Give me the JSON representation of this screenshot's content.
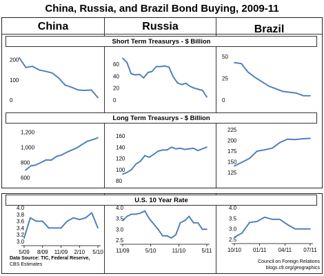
{
  "title": "China, Russia, and Brazil Bond Buying, 2009-11",
  "columns": [
    "China",
    "Russia",
    "Brazil"
  ],
  "sections": [
    "Short Term Treasurys - $ Billion",
    "Long Term Treasurys - $ Billion",
    "U.S. 10 Year Rate"
  ],
  "footer": {
    "source_line1": "Data Source: TIC, Federal Reserve,",
    "source_line2": "CBS Estimates",
    "org_line1": "Council on Foreign Relations",
    "org_line2": "blogs.cfr.org/geographics"
  },
  "colors": {
    "line": "#4f81bd",
    "border": "#222222"
  },
  "chart_data": [
    {
      "type": "line",
      "section": "Short Term Treasurys - $ Billion",
      "country": "China",
      "ylim": [
        0,
        230
      ],
      "yticks": [
        0,
        100,
        200
      ],
      "ytick_labels": [
        "0",
        "100",
        "200"
      ],
      "x": [
        0,
        1,
        2,
        3,
        4,
        5,
        6,
        7,
        8,
        9,
        10,
        11,
        12
      ],
      "values": [
        210,
        162,
        168,
        150,
        143,
        135,
        110,
        75,
        63,
        50,
        48,
        50,
        12
      ]
    },
    {
      "type": "line",
      "section": "Short Term Treasurys - $ Billion",
      "country": "Russia",
      "ylim": [
        0,
        75
      ],
      "yticks": [
        0,
        20,
        40,
        60
      ],
      "ytick_labels": [
        "0",
        "20",
        "40",
        "60"
      ],
      "x": [
        0,
        1,
        2,
        3,
        4,
        5,
        6,
        7,
        8,
        9,
        10,
        11,
        12,
        13,
        14,
        15,
        16,
        17,
        18,
        19,
        20
      ],
      "values": [
        70,
        63,
        44,
        42,
        43,
        37,
        46,
        48,
        56,
        56,
        57,
        55,
        39,
        29,
        26,
        28,
        23,
        20,
        18,
        16,
        5
      ]
    },
    {
      "type": "line",
      "section": "Short Term Treasurys - $ Billion",
      "country": "Brazil",
      "ylim": [
        0,
        50
      ],
      "yticks": [
        0,
        25,
        50
      ],
      "ytick_labels": [
        "0",
        "25",
        "50"
      ],
      "x": [
        0,
        1,
        2,
        3,
        4,
        5,
        6,
        7,
        8,
        9,
        10,
        11
      ],
      "values": [
        43,
        42,
        32,
        26,
        21,
        16,
        13,
        10,
        9,
        8,
        5,
        5
      ]
    },
    {
      "type": "line",
      "section": "Long Term Treasurys - $ Billion",
      "country": "China",
      "ylim": [
        560,
        1240
      ],
      "yticks": [
        600,
        800,
        1000,
        1200
      ],
      "ytick_labels": [
        "600",
        "800",
        "1,000",
        "1,200"
      ],
      "x": [
        0,
        1,
        2,
        3,
        4,
        5,
        6,
        7,
        8,
        9,
        10,
        11,
        12,
        13,
        14
      ],
      "values": [
        700,
        755,
        768,
        800,
        835,
        832,
        880,
        900,
        935,
        965,
        995,
        1040,
        1080,
        1100,
        1125
      ]
    },
    {
      "type": "line",
      "section": "Long Term Treasurys - $ Billion",
      "country": "Russia",
      "ylim": [
        80,
        165
      ],
      "yticks": [
        80,
        100,
        120,
        140,
        160
      ],
      "ytick_labels": [
        "80",
        "100",
        "120",
        "140",
        "160"
      ],
      "x": [
        0,
        1,
        2,
        3,
        4,
        5,
        6,
        7,
        8,
        9,
        10,
        11,
        12,
        13,
        14,
        15,
        16,
        17,
        18,
        19
      ],
      "values": [
        92,
        95,
        100,
        110,
        115,
        125,
        122,
        127,
        133,
        135,
        135,
        140,
        137,
        138,
        136,
        137,
        138,
        134,
        137,
        140
      ]
    },
    {
      "type": "line",
      "section": "Long Term Treasurys - $ Billion",
      "country": "Brazil",
      "ylim": [
        120,
        230
      ],
      "yticks": [
        125,
        150,
        175,
        200,
        225
      ],
      "ytick_labels": [
        "125",
        "150",
        "175",
        "200",
        "225"
      ],
      "x": [
        0,
        1,
        2,
        3,
        4,
        5,
        6,
        7,
        8,
        9,
        10
      ],
      "values": [
        140,
        149,
        158,
        175,
        178,
        182,
        195,
        203,
        202,
        204,
        205
      ]
    },
    {
      "type": "line",
      "section": "U.S. 10 Year Rate",
      "country": "China",
      "ylim": [
        3.0,
        4.0
      ],
      "yticks": [
        3.0,
        3.2,
        3.4,
        3.6,
        3.8,
        4.0
      ],
      "ytick_labels": [
        "3.0",
        "3.2",
        "3.4",
        "3.6",
        "3.8",
        "4.0"
      ],
      "xtick_labels": [
        "5/09",
        "8/09",
        "11/09",
        "2/10",
        "5/10"
      ],
      "x": [
        0,
        1,
        2,
        3,
        4,
        5,
        6,
        7,
        8,
        9,
        10,
        11,
        12
      ],
      "values": [
        3.1,
        3.7,
        3.6,
        3.6,
        3.4,
        3.4,
        3.4,
        3.6,
        3.7,
        3.65,
        3.7,
        3.85,
        3.4
      ]
    },
    {
      "type": "line",
      "section": "U.S. 10 Year Rate",
      "country": "Russia",
      "ylim": [
        2.5,
        4.0
      ],
      "yticks": [
        2.5,
        3.0,
        3.5,
        4.0
      ],
      "ytick_labels": [
        "2.5",
        "3.0",
        "3.5",
        "4.0"
      ],
      "xtick_labels": [
        "11/09",
        "5/10",
        "11/10",
        "5/11"
      ],
      "x": [
        0,
        1,
        2,
        3,
        4,
        5,
        6,
        7,
        8,
        9,
        10,
        11,
        12,
        13,
        14,
        15,
        16,
        17,
        18,
        19
      ],
      "values": [
        3.4,
        3.6,
        3.7,
        3.7,
        3.75,
        3.85,
        3.5,
        3.25,
        3.0,
        2.7,
        2.7,
        2.6,
        2.75,
        3.3,
        3.4,
        3.6,
        3.3,
        3.3,
        3.0,
        3.0
      ]
    },
    {
      "type": "line",
      "section": "U.S. 10 Year Rate",
      "country": "Brazil",
      "ylim": [
        2.5,
        4.0
      ],
      "yticks": [
        2.5,
        3.0,
        3.5,
        4.0
      ],
      "ytick_labels": [
        "2.5",
        "3.0",
        "3.5",
        "4.0"
      ],
      "xtick_labels": [
        "10/10",
        "01/11",
        "04/11",
        "07/11"
      ],
      "x": [
        0,
        1,
        2,
        3,
        4,
        5,
        6,
        7,
        8,
        9,
        10
      ],
      "values": [
        2.6,
        2.8,
        3.3,
        3.35,
        3.55,
        3.45,
        3.45,
        3.2,
        3.0,
        3.0,
        3.0
      ]
    }
  ]
}
